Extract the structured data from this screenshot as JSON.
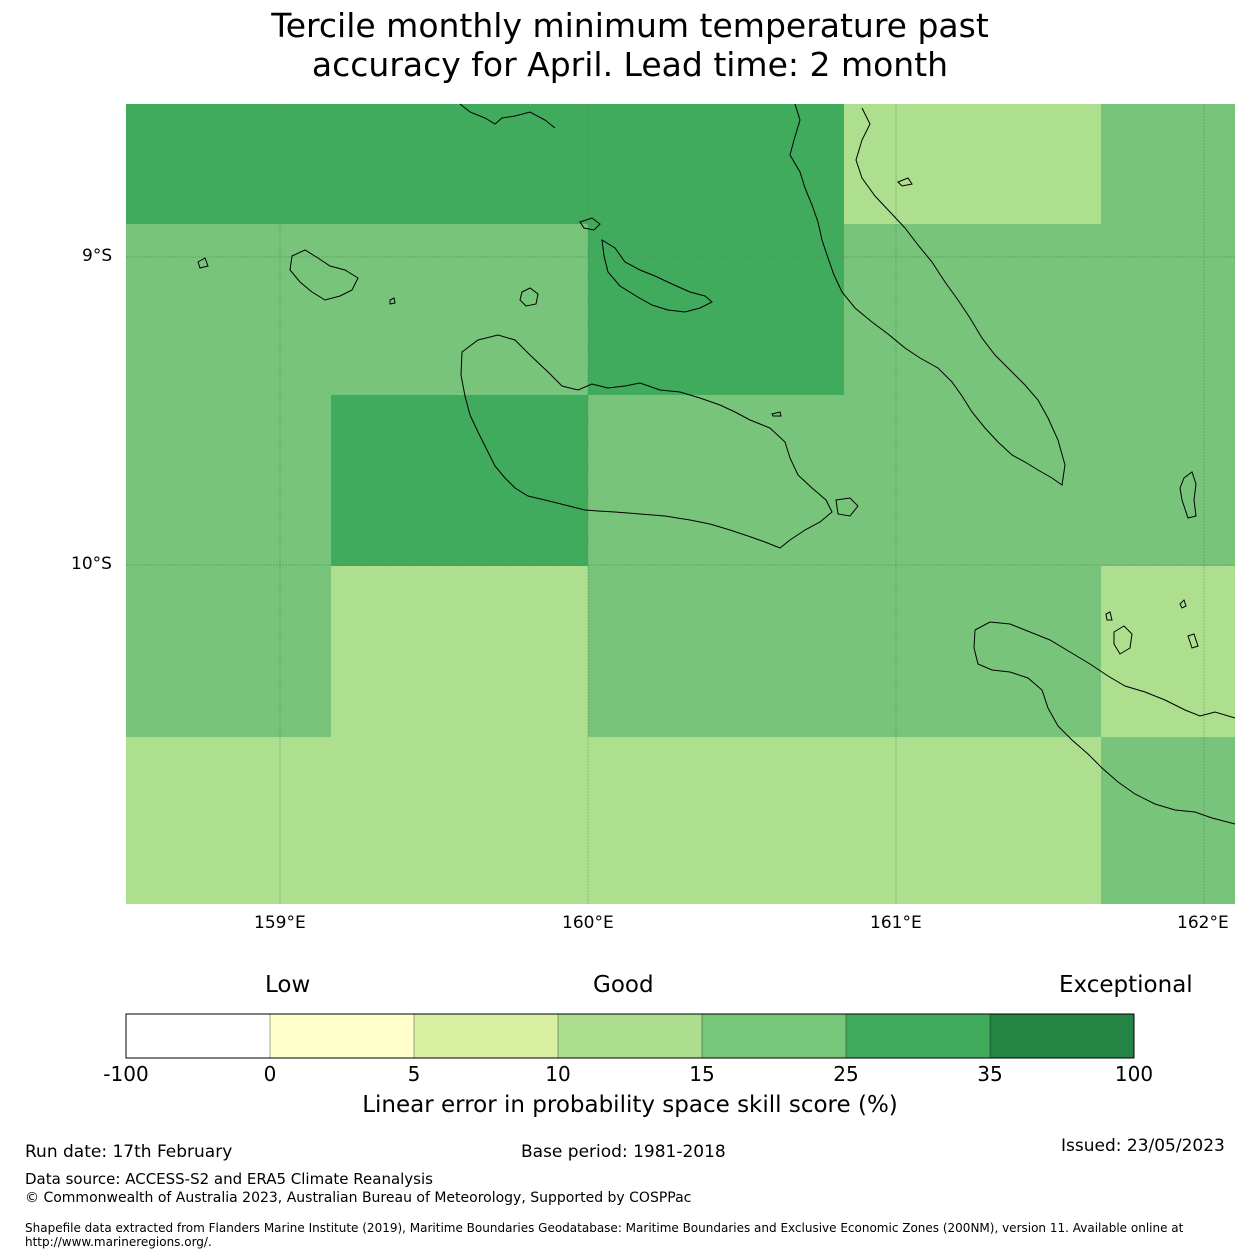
{
  "title_line1": "Tercile monthly minimum temperature past",
  "title_line2": "accuracy for April. Lead time: 2 month",
  "map": {
    "lat_labels": [
      "9°S",
      "10°S"
    ],
    "lon_labels": [
      "159°E",
      "160°E",
      "161°E",
      "162°E"
    ],
    "colors": {
      "light": "#addf8e",
      "medium": "#78c47b",
      "dark": "#41ab5d",
      "coast": "#000000"
    }
  },
  "colorbar": {
    "category_labels": [
      "Low",
      "Good",
      "Exceptional"
    ],
    "ticks": [
      "-100",
      "0",
      "5",
      "10",
      "15",
      "25",
      "35",
      "100"
    ],
    "colors": [
      "#ffffff",
      "#ffffcc",
      "#d9f0a3",
      "#addd8e",
      "#78c679",
      "#41ab5d",
      "#238443"
    ],
    "label": "Linear error in probability space skill score (%)"
  },
  "footer": {
    "run_date": "Run date: 17th February",
    "base_period": "Base period: 1981-2018",
    "issued": "Issued: 23/05/2023",
    "data_source": "Data source: ACCESS-S2 and ERA5 Climate Reanalysis",
    "copyright": "© Commonwealth of Australia 2023, Australian Bureau of Meteorology, Supported by COSPPac",
    "shapefile": "Shapefile data extracted from Flanders Marine Institute (2019), Maritime Boundaries Geodatabase: Maritime Boundaries and Exclusive Economic Zones (200NM), version 11. Available online at http://www.marineregions.org/."
  }
}
